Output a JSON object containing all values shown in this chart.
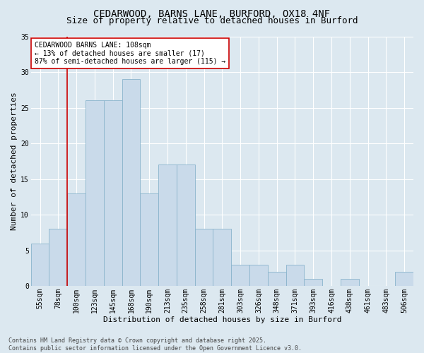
{
  "title_line1": "CEDARWOOD, BARNS LANE, BURFORD, OX18 4NF",
  "title_line2": "Size of property relative to detached houses in Burford",
  "xlabel": "Distribution of detached houses by size in Burford",
  "ylabel": "Number of detached properties",
  "categories": [
    "55sqm",
    "78sqm",
    "100sqm",
    "123sqm",
    "145sqm",
    "168sqm",
    "190sqm",
    "213sqm",
    "235sqm",
    "258sqm",
    "281sqm",
    "303sqm",
    "326sqm",
    "348sqm",
    "371sqm",
    "393sqm",
    "416sqm",
    "438sqm",
    "461sqm",
    "483sqm",
    "506sqm"
  ],
  "values": [
    6,
    8,
    13,
    26,
    26,
    29,
    13,
    17,
    17,
    8,
    8,
    3,
    3,
    2,
    3,
    1,
    0,
    1,
    0,
    0,
    2
  ],
  "bar_color": "#c9daea",
  "bar_edge_color": "#8ab4cc",
  "ref_line_color": "#cc0000",
  "annotation_text_line1": "CEDARWOOD BARNS LANE: 108sqm",
  "annotation_text_line2": "← 13% of detached houses are smaller (17)",
  "annotation_text_line3": "87% of semi-detached houses are larger (115) →",
  "annotation_box_facecolor": "#ffffff",
  "annotation_box_edgecolor": "#cc0000",
  "ylim": [
    0,
    35
  ],
  "yticks": [
    0,
    5,
    10,
    15,
    20,
    25,
    30,
    35
  ],
  "background_color": "#dce8f0",
  "plot_bg_color": "#dce8f0",
  "grid_color": "#ffffff",
  "footer_line1": "Contains HM Land Registry data © Crown copyright and database right 2025.",
  "footer_line2": "Contains public sector information licensed under the Open Government Licence v3.0.",
  "title_fontsize": 10,
  "subtitle_fontsize": 9,
  "axis_label_fontsize": 8,
  "tick_fontsize": 7,
  "annotation_fontsize": 7,
  "footer_fontsize": 6
}
